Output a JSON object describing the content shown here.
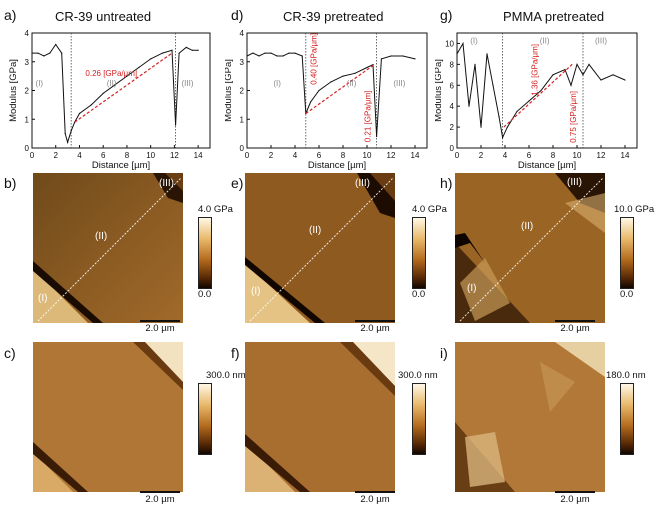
{
  "panels": {
    "a": {
      "label": "a)",
      "title": "CR-39 untreated"
    },
    "d": {
      "label": "d)",
      "title": "CR-39 pretreated"
    },
    "g": {
      "label": "g)",
      "title": "PMMA pretreated"
    },
    "b": {
      "label": "b)",
      "cbar_top": "4.0 GPa",
      "cbar_bottom": "0.0",
      "scale": "2.0 µm",
      "regions": [
        "(I)",
        "(II)",
        "(III)"
      ]
    },
    "e": {
      "label": "e)",
      "cbar_top": "4.0 GPa",
      "cbar_bottom": "0.0",
      "scale": "2.0 µm",
      "regions": [
        "(I)",
        "(II)",
        "(III)"
      ]
    },
    "h": {
      "label": "h)",
      "cbar_top": "10.0 GPa",
      "cbar_bottom": "0.0",
      "scale": "2.0 µm",
      "regions": [
        "(I)",
        "(II)",
        "(III)"
      ]
    },
    "c": {
      "label": "c)",
      "cbar_top": "300.0 nm",
      "scale": "2.0 µm"
    },
    "f": {
      "label": "f)",
      "cbar_top": "300.0 nm",
      "scale": "2.0 µm"
    },
    "i": {
      "label": "i)",
      "cbar_top": "180.0 nm",
      "scale": "2.0 µm"
    }
  },
  "chart_data": [
    {
      "type": "line",
      "xlabel": "Distance [µm]",
      "ylabel": "Modulus [GPa]",
      "xlim": [
        0,
        15
      ],
      "ylim": [
        0,
        4
      ],
      "xticks": [
        "0",
        "2",
        "4",
        "6",
        "8",
        "10",
        "12",
        "14"
      ],
      "yticks": [
        "0",
        "1",
        "2",
        "3",
        "4"
      ],
      "regions": [
        "(I)",
        "(II)",
        "(III)"
      ],
      "slope_labels": [
        "0.26 [GPa/µm]"
      ],
      "color_line": "#111111",
      "color_fit": "#d62020",
      "series": [
        {
          "x": [
            0,
            0.5,
            1,
            1.5,
            2,
            2.5,
            2.8,
            3.0,
            3.3,
            3.6,
            4,
            5,
            6,
            7,
            8,
            9,
            10,
            11,
            11.8,
            12.1,
            12.4,
            13,
            13.5,
            14
          ],
          "values": [
            3.3,
            3.3,
            3.2,
            3.3,
            3.6,
            3.3,
            0.5,
            0.2,
            0.6,
            0.9,
            1.2,
            1.5,
            1.9,
            2.2,
            2.5,
            2.8,
            3.1,
            3.3,
            3.4,
            0.8,
            3.3,
            3.5,
            3.4,
            3.4
          ]
        }
      ]
    },
    {
      "type": "line",
      "xlabel": "Distance [µm]",
      "ylabel": "Modulus [GPa]",
      "xlim": [
        0,
        15
      ],
      "ylim": [
        0,
        4
      ],
      "xticks": [
        "0",
        "2",
        "4",
        "6",
        "8",
        "10",
        "12",
        "14"
      ],
      "yticks": [
        "0",
        "1",
        "2",
        "3",
        "4"
      ],
      "regions": [
        "(I)",
        "(II)",
        "(III)"
      ],
      "slope_labels": [
        "0.40 [GPa/µm]",
        "0.21 [GPa/µm]"
      ],
      "color_line": "#111111",
      "color_fit": "#d62020",
      "series": [
        {
          "x": [
            0,
            0.5,
            1,
            1.5,
            2,
            2.5,
            3,
            3.5,
            4,
            4.6,
            4.9,
            5.3,
            6,
            7,
            8,
            9,
            10,
            10.5,
            10.8,
            11.2,
            12,
            13,
            14
          ],
          "values": [
            3.2,
            3.3,
            3.2,
            3.3,
            3.3,
            3.2,
            3.2,
            3.3,
            3.3,
            3.2,
            1.2,
            1.6,
            2.0,
            2.3,
            2.5,
            2.6,
            2.8,
            2.9,
            0.4,
            3.1,
            3.2,
            3.2,
            3.1
          ]
        }
      ]
    },
    {
      "type": "line",
      "xlabel": "Distance [µm]",
      "ylabel": "Modulus [GPa]",
      "xlim": [
        0,
        15
      ],
      "ylim": [
        0,
        11
      ],
      "xticks": [
        "0",
        "2",
        "4",
        "6",
        "8",
        "10",
        "12",
        "14"
      ],
      "yticks": [
        "0",
        "2",
        "4",
        "6",
        "8",
        "10"
      ],
      "regions": [
        "(I)",
        "(II)",
        "(III)"
      ],
      "slope_labels": [
        "1.36 [GPa/µm]",
        "0.75 [GPa/µm]"
      ],
      "color_line": "#111111",
      "color_fit": "#d62020",
      "series": [
        {
          "x": [
            0,
            0.5,
            1,
            1.5,
            2,
            2.5,
            3,
            3.5,
            3.8,
            4.2,
            5,
            6,
            7,
            8,
            9,
            9.5,
            10,
            10.5,
            11,
            12,
            13,
            14
          ],
          "values": [
            9,
            10,
            4,
            8,
            2,
            9,
            6,
            3,
            1,
            2,
            3.5,
            4.5,
            5.5,
            7,
            7.5,
            6,
            8,
            7,
            8,
            6.5,
            7,
            6.5
          ]
        }
      ]
    }
  ]
}
